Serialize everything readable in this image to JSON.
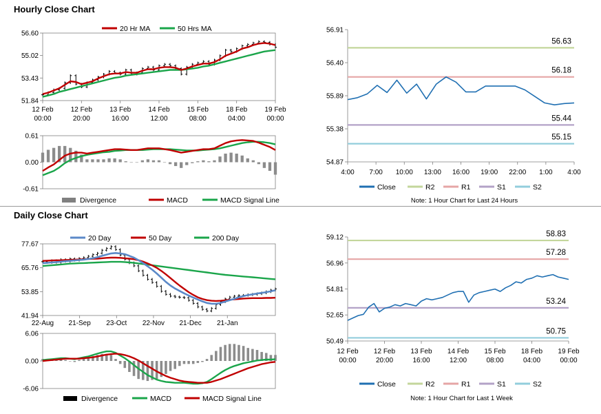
{
  "titles": {
    "hourly": "Hourly Close Chart",
    "daily": "Daily Close Chart"
  },
  "colors": {
    "red": "#c00000",
    "green": "#1aa54a",
    "black": "#000000",
    "grey": "#808080",
    "blue": "#1f6fb2",
    "blue_ma": "#5b89c8",
    "r2": "#c3d69b",
    "r1": "#e6a5a5",
    "s1": "#b3a2c7",
    "s2": "#92cddc"
  },
  "chart_data": [
    {
      "id": "hourly_price",
      "type": "line",
      "legend": [
        "20 Hr MA",
        "50 Hrs MA"
      ],
      "ylim": [
        51.84,
        56.6
      ],
      "yticks": [
        "56.60",
        "55.02",
        "53.43",
        "51.84"
      ],
      "xticks": [
        [
          "12 Feb",
          "00:00"
        ],
        [
          "12 Feb",
          "20:00"
        ],
        [
          "13 Feb",
          "16:00"
        ],
        [
          "14 Feb",
          "12:00"
        ],
        [
          "15 Feb",
          "08:00"
        ],
        [
          "18 Feb",
          "04:00"
        ],
        [
          "19 Feb",
          "00:00"
        ]
      ],
      "series": [
        {
          "name": "Close",
          "values": [
            52.25,
            52.4,
            52.6,
            52.7,
            53.1,
            53.6,
            53.0,
            52.8,
            53.1,
            53.3,
            53.5,
            53.7,
            53.9,
            53.8,
            53.7,
            54.0,
            53.7,
            53.8,
            54.1,
            54.2,
            54.0,
            54.3,
            54.4,
            54.3,
            54.1,
            53.7,
            54.2,
            54.4,
            54.5,
            54.6,
            54.4,
            54.7,
            55.0,
            55.4,
            55.3,
            55.5,
            55.7,
            55.8,
            55.9,
            56.0,
            55.95,
            55.8,
            55.6
          ]
        },
        {
          "name": "20 Hr MA",
          "values": [
            52.3,
            52.4,
            52.55,
            52.7,
            52.95,
            53.2,
            53.15,
            53.0,
            53.1,
            53.2,
            53.4,
            53.55,
            53.7,
            53.75,
            53.75,
            53.85,
            53.8,
            53.8,
            53.95,
            54.05,
            54.05,
            54.15,
            54.2,
            54.2,
            54.15,
            54.0,
            54.1,
            54.25,
            54.35,
            54.45,
            54.45,
            54.55,
            54.75,
            55.0,
            55.15,
            55.3,
            55.5,
            55.6,
            55.75,
            55.85,
            55.9,
            55.85,
            55.75
          ]
        },
        {
          "name": "50 Hrs MA",
          "values": [
            52.1,
            52.2,
            52.3,
            52.45,
            52.55,
            52.65,
            52.75,
            52.85,
            52.95,
            53.05,
            53.15,
            53.25,
            53.35,
            53.45,
            53.5,
            53.6,
            53.65,
            53.7,
            53.75,
            53.8,
            53.85,
            53.9,
            53.95,
            54.0,
            54.0,
            54.0,
            54.05,
            54.1,
            54.15,
            54.25,
            54.3,
            54.4,
            54.5,
            54.6,
            54.7,
            54.8,
            54.9,
            55.0,
            55.1,
            55.2,
            55.3,
            55.35,
            55.4
          ]
        }
      ]
    },
    {
      "id": "hourly_macd",
      "type": "line",
      "legend": [
        "Divergence",
        "MACD",
        "MACD Signal Line"
      ],
      "ylim": [
        -0.61,
        0.61
      ],
      "yticks": [
        "0.61",
        "0.00",
        "-0.61"
      ],
      "series": [
        {
          "name": "MACD",
          "values": [
            -0.2,
            -0.12,
            -0.05,
            0.05,
            0.15,
            0.2,
            0.22,
            0.22,
            0.2,
            0.22,
            0.24,
            0.26,
            0.28,
            0.3,
            0.3,
            0.29,
            0.28,
            0.28,
            0.3,
            0.32,
            0.32,
            0.32,
            0.3,
            0.28,
            0.25,
            0.22,
            0.24,
            0.26,
            0.28,
            0.3,
            0.3,
            0.32,
            0.38,
            0.44,
            0.48,
            0.5,
            0.51,
            0.5,
            0.49,
            0.45,
            0.4,
            0.35,
            0.28
          ]
        },
        {
          "name": "MACD Signal Line",
          "values": [
            -0.3,
            -0.25,
            -0.2,
            -0.12,
            -0.02,
            0.05,
            0.1,
            0.14,
            0.17,
            0.19,
            0.21,
            0.23,
            0.24,
            0.26,
            0.27,
            0.28,
            0.28,
            0.28,
            0.28,
            0.29,
            0.3,
            0.3,
            0.3,
            0.3,
            0.29,
            0.28,
            0.27,
            0.27,
            0.27,
            0.28,
            0.29,
            0.3,
            0.32,
            0.35,
            0.38,
            0.41,
            0.44,
            0.46,
            0.47,
            0.47,
            0.46,
            0.44,
            0.41
          ]
        }
      ]
    },
    {
      "id": "hourly_24h",
      "type": "line",
      "ylim": [
        54.87,
        56.91
      ],
      "yticks": [
        "56.91",
        "56.40",
        "55.89",
        "55.38",
        "54.87"
      ],
      "xticks": [
        "4:00",
        "7:00",
        "10:00",
        "13:00",
        "16:00",
        "19:00",
        "22:00",
        "1:00",
        "4:00"
      ],
      "series": [
        {
          "name": "Close",
          "values": [
            55.83,
            55.86,
            55.92,
            56.05,
            55.94,
            56.13,
            55.93,
            56.07,
            55.84,
            56.07,
            56.18,
            56.1,
            55.95,
            55.95,
            56.04,
            56.04,
            56.04,
            56.04,
            55.98,
            55.88,
            55.78,
            55.75,
            55.77,
            55.78
          ]
        }
      ],
      "levels": [
        {
          "name": "R2",
          "value": 56.63,
          "label": "56.63"
        },
        {
          "name": "R1",
          "value": 56.18,
          "label": "56.18"
        },
        {
          "name": "S1",
          "value": 55.44,
          "label": "55.44"
        },
        {
          "name": "S2",
          "value": 55.15,
          "label": "55.15"
        }
      ],
      "legend": [
        "Close",
        "R2",
        "R1",
        "S1",
        "S2"
      ],
      "note": "Note: 1 Hour Chart for Last 24 Hours"
    },
    {
      "id": "daily_price",
      "type": "line",
      "legend": [
        "20 Day",
        "50 Day",
        "200 Day"
      ],
      "ylim": [
        41.94,
        77.67
      ],
      "yticks": [
        "77.67",
        "65.76",
        "53.85",
        "41.94"
      ],
      "xticks": [
        "22-Aug",
        "21-Sep",
        "23-Oct",
        "22-Nov",
        "21-Dec",
        "21-Jan"
      ],
      "series": [
        {
          "name": "Close",
          "values": [
            68.8,
            68.4,
            69.3,
            68.5,
            69.8,
            69.0,
            70.2,
            69.5,
            70.4,
            70.8,
            71.5,
            72.3,
            73.0,
            74.5,
            75.4,
            76.3,
            74.8,
            72.1,
            70.0,
            68.2,
            66.7,
            64.2,
            62.0,
            60.0,
            58.4,
            56.5,
            54.0,
            52.5,
            51.6,
            51.2,
            51.0,
            50.8,
            49.5,
            48.0,
            46.2,
            45.0,
            44.2,
            45.5,
            47.4,
            48.8,
            50.2,
            51.1,
            51.6,
            51.9,
            52.0,
            52.3,
            52.5,
            52.8,
            53.2,
            53.8,
            54.6,
            55.2
          ]
        },
        {
          "name": "20 Day",
          "values": [
            68.0,
            68.2,
            68.4,
            68.6,
            68.8,
            69.0,
            69.2,
            69.4,
            69.6,
            69.8,
            70.1,
            70.5,
            71.0,
            71.7,
            72.3,
            72.9,
            73.1,
            72.9,
            72.5,
            71.7,
            70.8,
            69.5,
            68.1,
            66.5,
            64.8,
            62.9,
            60.8,
            58.7,
            56.9,
            55.4,
            54.2,
            53.0,
            51.9,
            50.9,
            49.9,
            49.0,
            48.2,
            47.8,
            47.8,
            48.2,
            48.9,
            49.6,
            50.3,
            51.0,
            51.6,
            52.1,
            52.5,
            52.9,
            53.2,
            53.6,
            54.0,
            54.5
          ]
        },
        {
          "name": "50 Day",
          "values": [
            69.2,
            69.3,
            69.4,
            69.5,
            69.5,
            69.6,
            69.7,
            69.8,
            69.9,
            70.0,
            70.1,
            70.2,
            70.3,
            70.5,
            70.7,
            70.8,
            70.8,
            70.7,
            70.5,
            70.3,
            70.0,
            69.5,
            68.8,
            67.9,
            66.9,
            65.7,
            64.2,
            62.5,
            60.6,
            58.7,
            56.9,
            55.2,
            53.6,
            52.2,
            51.0,
            50.2,
            49.6,
            49.3,
            49.2,
            49.3,
            49.5,
            49.8,
            50.0,
            50.2,
            50.4,
            50.5,
            50.6,
            50.6,
            50.6,
            50.7,
            50.7,
            50.8
          ]
        },
        {
          "name": "200 Day",
          "values": [
            66.6,
            66.8,
            67.0,
            67.2,
            67.4,
            67.6,
            67.8,
            67.9,
            68.0,
            68.1,
            68.2,
            68.3,
            68.4,
            68.5,
            68.6,
            68.7,
            68.7,
            68.7,
            68.6,
            68.4,
            68.2,
            67.9,
            67.6,
            67.3,
            67.0,
            66.7,
            66.4,
            66.1,
            65.8,
            65.5,
            65.2,
            64.9,
            64.6,
            64.3,
            64.0,
            63.7,
            63.4,
            63.1,
            62.8,
            62.5,
            62.2,
            62.0,
            61.8,
            61.6,
            61.4,
            61.2,
            61.0,
            60.8,
            60.6,
            60.4,
            60.2,
            60.0
          ]
        }
      ]
    },
    {
      "id": "daily_macd",
      "type": "line",
      "legend": [
        "Divergence",
        "MACD",
        "MACD Signal Line"
      ],
      "ylim": [
        -6.06,
        6.06
      ],
      "yticks": [
        "6.06",
        "0.00",
        "-6.06"
      ],
      "series": [
        {
          "name": "MACD",
          "values": [
            0.2,
            0.3,
            0.4,
            0.5,
            0.6,
            0.6,
            0.5,
            0.4,
            0.6,
            0.8,
            1.0,
            1.3,
            1.6,
            1.9,
            2.1,
            2.1,
            1.8,
            1.2,
            0.6,
            -0.1,
            -0.9,
            -1.7,
            -2.4,
            -3.1,
            -3.6,
            -4.1,
            -4.4,
            -4.6,
            -4.7,
            -4.8,
            -4.8,
            -4.8,
            -4.9,
            -5.0,
            -5.0,
            -4.9,
            -4.6,
            -4.0,
            -3.3,
            -2.6,
            -2.0,
            -1.5,
            -1.1,
            -0.8,
            -0.5,
            -0.3,
            -0.1,
            0.1,
            0.2,
            0.3,
            0.3,
            0.4
          ]
        },
        {
          "name": "MACD Signal Line",
          "values": [
            0.0,
            0.1,
            0.2,
            0.3,
            0.4,
            0.5,
            0.5,
            0.5,
            0.5,
            0.6,
            0.7,
            0.8,
            1.0,
            1.2,
            1.4,
            1.5,
            1.6,
            1.5,
            1.3,
            1.0,
            0.6,
            0.1,
            -0.5,
            -1.1,
            -1.7,
            -2.3,
            -2.8,
            -3.3,
            -3.7,
            -4.0,
            -4.3,
            -4.5,
            -4.6,
            -4.7,
            -4.8,
            -4.8,
            -4.8,
            -4.6,
            -4.3,
            -4.0,
            -3.6,
            -3.2,
            -2.8,
            -2.4,
            -2.0,
            -1.6,
            -1.3,
            -1.0,
            -0.7,
            -0.5,
            -0.3,
            -0.2
          ]
        }
      ]
    },
    {
      "id": "hourly_week",
      "type": "line",
      "ylim": [
        50.49,
        59.12
      ],
      "yticks": [
        "59.12",
        "56.96",
        "54.81",
        "52.65",
        "50.49"
      ],
      "xticks": [
        [
          "12 Feb",
          "00:00"
        ],
        [
          "12 Feb",
          "20:00"
        ],
        [
          "13 Feb",
          "16:00"
        ],
        [
          "14 Feb",
          "12:00"
        ],
        [
          "15 Feb",
          "08:00"
        ],
        [
          "18 Feb",
          "04:00"
        ],
        [
          "19 Feb",
          "00:00"
        ]
      ],
      "series": [
        {
          "name": "Close",
          "values": [
            52.2,
            52.4,
            52.6,
            52.7,
            53.3,
            53.6,
            52.9,
            53.2,
            53.3,
            53.5,
            53.4,
            53.6,
            53.5,
            53.4,
            53.8,
            54.0,
            53.9,
            54.0,
            54.1,
            54.3,
            54.5,
            54.6,
            54.6,
            53.7,
            54.3,
            54.5,
            54.6,
            54.7,
            54.8,
            54.6,
            54.9,
            55.1,
            55.4,
            55.3,
            55.6,
            55.7,
            55.9,
            55.8,
            55.9,
            56.0,
            55.8,
            55.7,
            55.6
          ]
        }
      ],
      "levels": [
        {
          "name": "R2",
          "value": 58.83,
          "label": "58.83"
        },
        {
          "name": "R1",
          "value": 57.28,
          "label": "57.28"
        },
        {
          "name": "S1",
          "value": 53.24,
          "label": "53.24"
        },
        {
          "name": "S2",
          "value": 50.75,
          "label": "50.75"
        }
      ],
      "legend": [
        "Close",
        "R2",
        "R1",
        "S1",
        "S2"
      ],
      "note": "Note: 1 Hour Chart for Last 1 Week"
    }
  ]
}
